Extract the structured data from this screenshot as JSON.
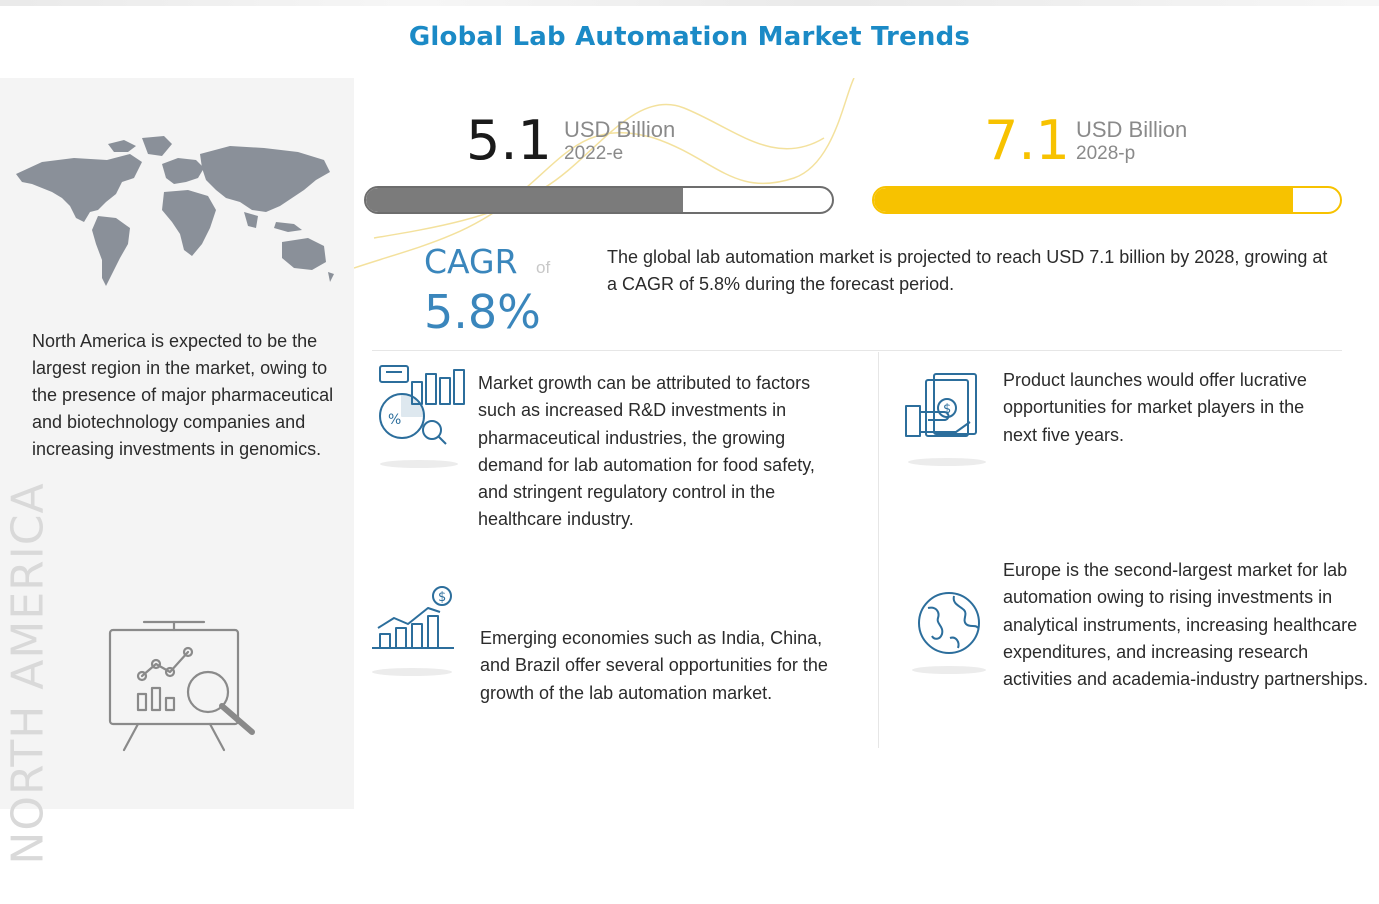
{
  "title": "Global Lab Automation Market Trends",
  "left_panel": {
    "region_label": "NORTH AMERICA",
    "description": "North America is expected to be the largest region in the market, owing to the presence of major pharmaceutical and biotechnology companies and increasing investments in genomics.",
    "icons": [
      "world-map-icon",
      "presentation-analytics-icon"
    ]
  },
  "metrics": [
    {
      "value": "5.1",
      "unit": "USD Billion",
      "year": "2022-e",
      "fill": 0.68,
      "color": "#7b7b7b"
    },
    {
      "value": "7.1",
      "unit": "USD Billion",
      "year": "2028-p",
      "fill": 0.9,
      "color": "#f7c200"
    }
  ],
  "cagr": {
    "label": "CAGR",
    "of": "of",
    "value": "5.8%"
  },
  "summary": "The global lab automation market is projected to reach USD 7.1 billion by 2028, growing at a CAGR of 5.8% during the forecast period.",
  "points": [
    {
      "icon": "analytics-chart-icon",
      "text": "Market growth can be attributed to factors such as increased R&D investments in pharmaceutical industries, the growing demand for lab automation for food safety, and stringent regulatory control in the healthcare industry."
    },
    {
      "icon": "money-hand-icon",
      "text": "Product launches would offer lucrative opportunities for market players in the next five years."
    },
    {
      "icon": "growth-bars-dollar-icon",
      "text": "Emerging economies such as India, China, and Brazil offer several opportunities for the growth of the lab automation market."
    },
    {
      "icon": "globe-icon",
      "text": "Europe is the second-largest market for lab automation owing to rising investments in analytical instruments, increasing healthcare expenditures, and increasing research activities and academia-industry partnerships."
    }
  ],
  "colors": {
    "title": "#1b8ac6",
    "cagr": "#3a86bc",
    "highlight": "#f7c200",
    "icon": "#2c6e9c"
  }
}
